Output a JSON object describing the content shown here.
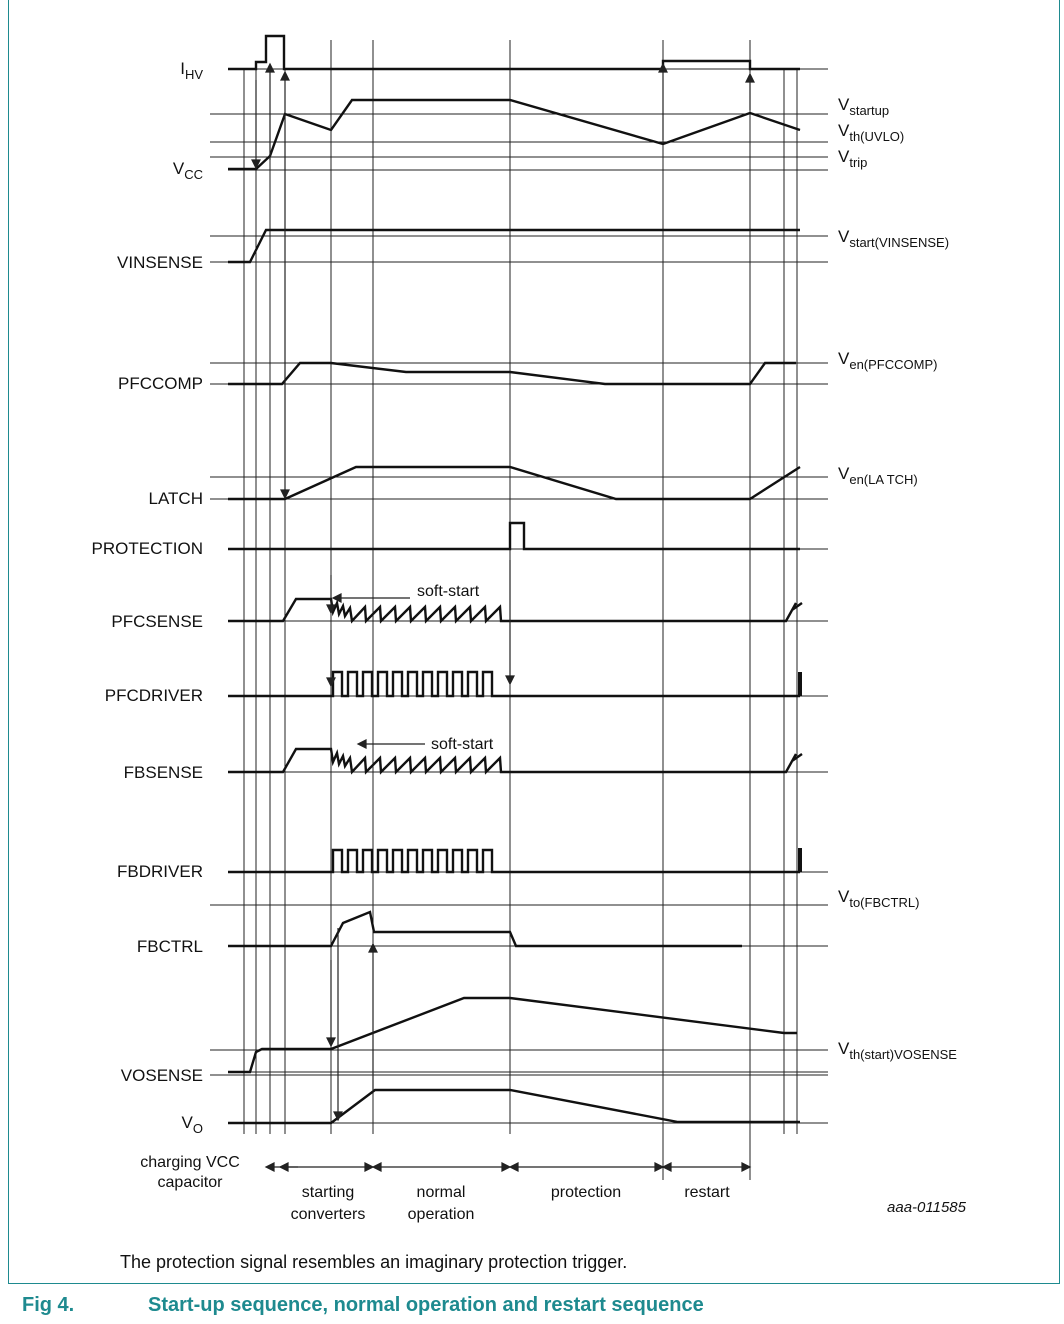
{
  "signals": [
    {
      "id": "ihv",
      "label": "I",
      "sub": "HV"
    },
    {
      "id": "vcc",
      "label": "V",
      "sub": "CC"
    },
    {
      "id": "vinsense",
      "label": "VINSENSE"
    },
    {
      "id": "pfccomp",
      "label": "PFCCOMP"
    },
    {
      "id": "latch",
      "label": "LATCH"
    },
    {
      "id": "protection",
      "label": "PROTECTION"
    },
    {
      "id": "pfcsense",
      "label": "PFCSENSE"
    },
    {
      "id": "pfcdriver",
      "label": "PFCDRIVER"
    },
    {
      "id": "fbsense",
      "label": "FBSENSE"
    },
    {
      "id": "fbdriver",
      "label": "FBDRIVER"
    },
    {
      "id": "fbctrl",
      "label": "FBCTRL"
    },
    {
      "id": "vosense",
      "label": "VOSENSE"
    },
    {
      "id": "vo",
      "label": "V",
      "sub": "O"
    }
  ],
  "levels": [
    {
      "label": "V",
      "sub": "startup"
    },
    {
      "label": "V",
      "sub": "th(UVLO)"
    },
    {
      "label": "V",
      "sub": "trip"
    },
    {
      "label": "V",
      "sub": "start(VINSENSE)"
    },
    {
      "label": "V",
      "sub": "en(PFCCOMP)"
    },
    {
      "label": "V",
      "sub": "en(LA TCH)"
    },
    {
      "label": "V",
      "sub": "to(FBCTRL)"
    },
    {
      "label": "V",
      "sub": "th(start)VOSENSE"
    }
  ],
  "soft_start": [
    "soft-start",
    "soft-start"
  ],
  "phases": [
    "charging VCC",
    "capacitor",
    "starting",
    "converters",
    "normal",
    "operation",
    "protection",
    "restart"
  ],
  "figure_code": "aaa-011585",
  "note": "The protection signal resembles an imaginary protection trigger.",
  "figure": {
    "number": "Fig 4.",
    "title": "Start-up sequence, normal operation and restart sequence"
  }
}
